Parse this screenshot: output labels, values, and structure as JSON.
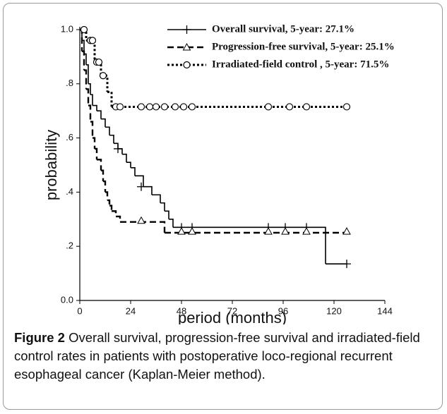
{
  "chart_data": {
    "type": "step",
    "x_label": "period (months)",
    "y_label": "probability",
    "xlim": [
      0,
      144
    ],
    "xticks": [
      0,
      24,
      48,
      72,
      96,
      120,
      144
    ],
    "ylim": [
      0,
      1
    ],
    "yticks": [
      {
        "value": 0,
        "label": "0.0"
      },
      {
        "value": 0.2,
        "label": ".2"
      },
      {
        "value": 0.4,
        "label": ".4"
      },
      {
        "value": 0.6,
        "label": ".6"
      },
      {
        "value": 0.8,
        "label": ".8"
      },
      {
        "value": 1,
        "label": "1.0"
      }
    ],
    "legend": "upper right",
    "series": [
      {
        "name": "Overall survival, 5-year: 27.1%",
        "color": "#000000",
        "dash": "solid",
        "marker": "plus",
        "x": [
          0,
          1,
          2,
          3,
          4,
          5,
          6,
          8,
          10,
          12,
          14,
          16,
          18,
          20,
          22,
          24,
          26,
          30,
          34,
          38,
          40,
          42,
          44,
          116,
          126
        ],
        "values": [
          1.0,
          0.96,
          0.91,
          0.87,
          0.8,
          0.76,
          0.72,
          0.7,
          0.67,
          0.64,
          0.61,
          0.58,
          0.56,
          0.54,
          0.51,
          0.49,
          0.46,
          0.42,
          0.39,
          0.36,
          0.33,
          0.3,
          0.27,
          0.135,
          0.135
        ],
        "censored": {
          "x": [
            18,
            29,
            48,
            53,
            89,
            97,
            107,
            126
          ],
          "values": [
            0.56,
            0.42,
            0.27,
            0.27,
            0.27,
            0.27,
            0.27,
            0.135
          ]
        }
      },
      {
        "name": "Progression-free survival, 5-year: 25.1%",
        "color": "#000000",
        "dash": "dashed",
        "marker": "triangle",
        "x": [
          0,
          1,
          2,
          3,
          4,
          5,
          6,
          7,
          8,
          10,
          11,
          12,
          13,
          14,
          15,
          17,
          19,
          40,
          126
        ],
        "values": [
          1.0,
          0.92,
          0.85,
          0.78,
          0.72,
          0.66,
          0.6,
          0.56,
          0.52,
          0.48,
          0.44,
          0.4,
          0.37,
          0.35,
          0.33,
          0.31,
          0.29,
          0.25,
          0.25
        ],
        "censored": {
          "x": [
            29,
            48,
            53,
            89,
            97,
            107,
            126
          ],
          "values": [
            0.295,
            0.255,
            0.255,
            0.255,
            0.255,
            0.255,
            0.255
          ]
        }
      },
      {
        "name": "Irradiated-field control , 5-year: 71.5%",
        "color": "#000000",
        "dash": "dotted",
        "marker": "circle",
        "x": [
          0,
          3,
          7,
          10,
          13,
          15,
          126
        ],
        "values": [
          1.0,
          0.96,
          0.88,
          0.83,
          0.77,
          0.715,
          0.715
        ],
        "censored": {
          "x": [
            2,
            5,
            6,
            8,
            9,
            11,
            17,
            19,
            29,
            33,
            36,
            40,
            45,
            49,
            53,
            89,
            99,
            107,
            126
          ],
          "values": [
            1.0,
            0.96,
            0.96,
            0.88,
            0.88,
            0.83,
            0.715,
            0.715,
            0.715,
            0.715,
            0.715,
            0.715,
            0.715,
            0.715,
            0.715,
            0.715,
            0.715,
            0.715,
            0.715
          ]
        }
      }
    ]
  },
  "caption": {
    "label": "Figure 2",
    "text": "Overall survival, progression-free survival and irradiated-field control rates in patients with postoperative loco-regional recurrent esophageal cancer (Kaplan-Meier method)."
  }
}
